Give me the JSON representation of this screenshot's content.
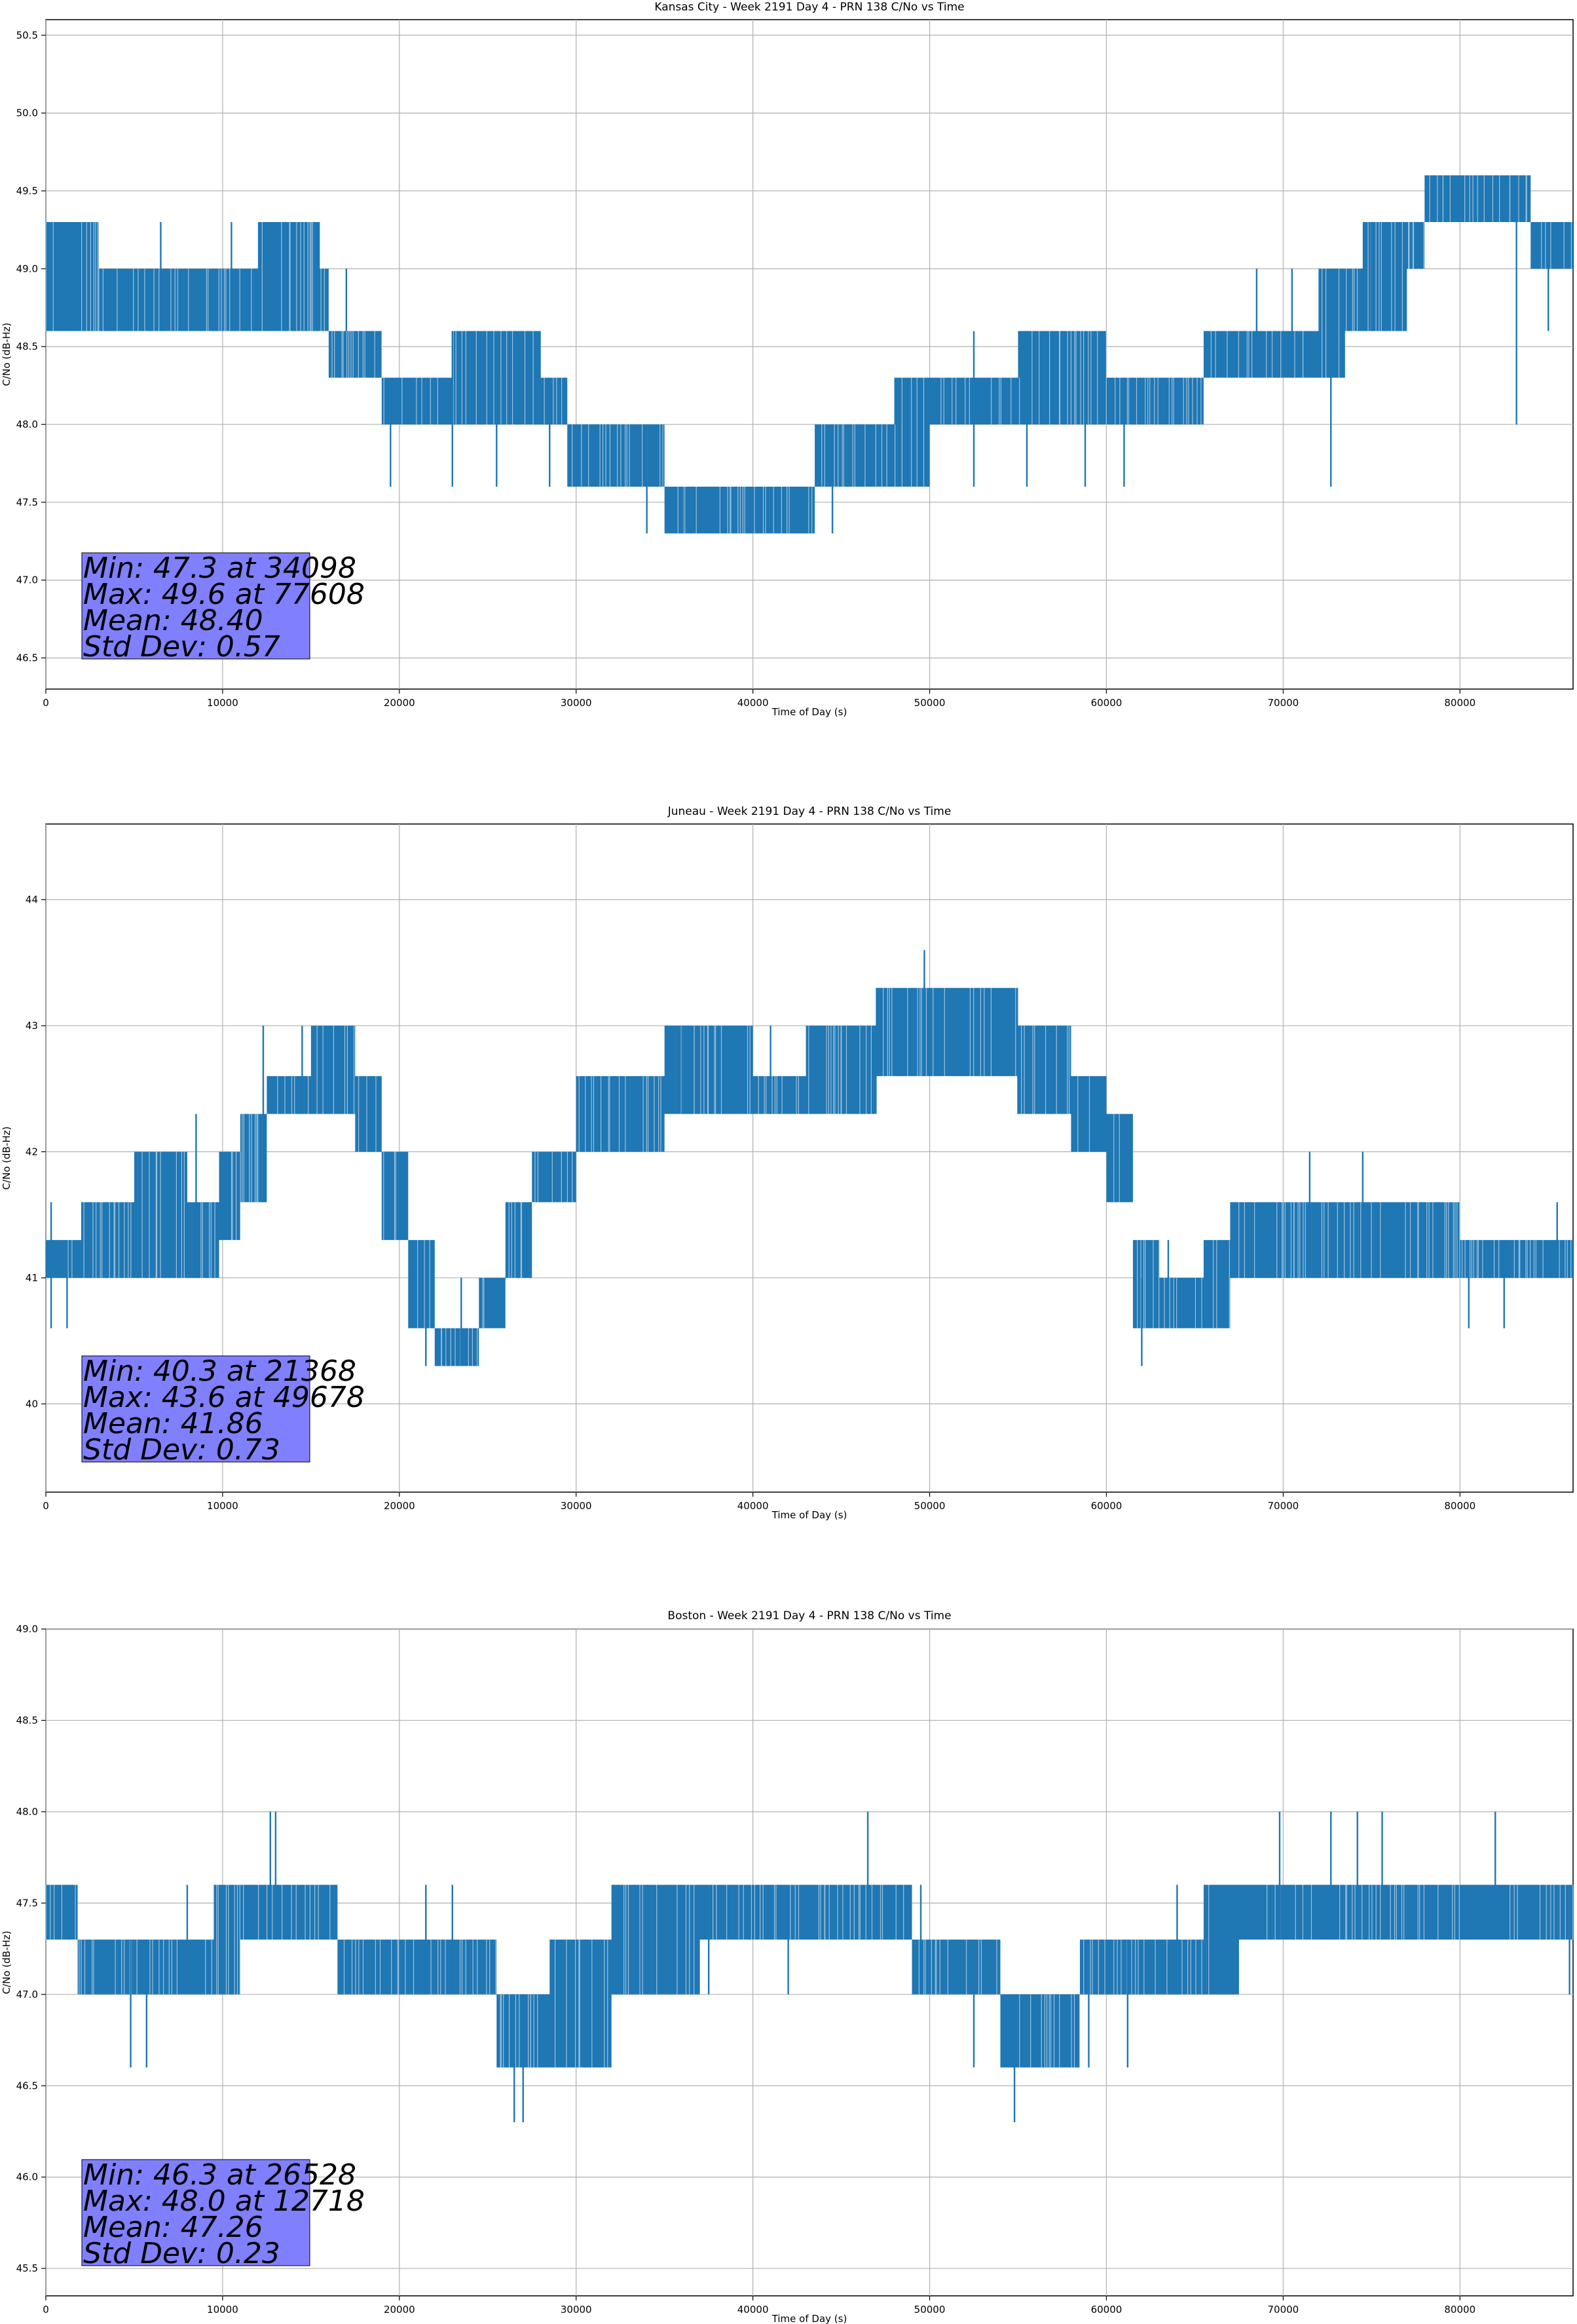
{
  "colors": {
    "series": "#1f77b4",
    "grid": "#b0b0b0",
    "stats_box": "#8080ff",
    "axis": "#000000"
  },
  "chart_data": [
    {
      "type": "line",
      "title": "Kansas City - Week 2191 Day 4 - PRN 138 C/No vs Time",
      "xlabel": "Time of Day (s)",
      "ylabel": "C/No (dB-Hz)",
      "xlim": [
        0,
        86400
      ],
      "ylim": [
        46.3,
        50.6
      ],
      "xticks": [
        "0",
        "10000",
        "20000",
        "30000",
        "40000",
        "50000",
        "60000",
        "70000",
        "80000"
      ],
      "yticks": [
        "46.5",
        "47.0",
        "47.5",
        "48.0",
        "48.5",
        "49.0",
        "49.5",
        "50.0",
        "50.5"
      ],
      "grid": true,
      "stats": [
        "Min: 47.3 at 34098",
        "Max: 49.6 at 77608",
        "Mean: 48.40",
        "Std Dev: 0.57"
      ],
      "series": [
        {
          "x": [
            0,
            3000,
            8000,
            12000,
            15500,
            16000,
            18500,
            19000,
            23000,
            28000,
            29500,
            35000,
            41000,
            43500,
            48000,
            50000,
            55000,
            60000,
            65000,
            65500,
            68000,
            72000,
            73500,
            74500,
            77000,
            78000,
            83000,
            84000,
            86400
          ],
          "low": [
            48.6,
            48.6,
            48.6,
            48.6,
            48.6,
            48.3,
            48.3,
            48.0,
            48.0,
            48.0,
            47.6,
            47.3,
            47.3,
            47.6,
            47.6,
            48.0,
            48.0,
            48.0,
            48.0,
            48.3,
            48.3,
            48.3,
            48.6,
            48.6,
            49.0,
            49.3,
            49.3,
            49.0,
            49.0
          ],
          "high": [
            49.3,
            49.0,
            49.0,
            49.3,
            49.0,
            48.6,
            48.6,
            48.3,
            48.6,
            48.3,
            48.0,
            47.6,
            47.6,
            48.0,
            48.3,
            48.3,
            48.6,
            48.3,
            48.3,
            48.6,
            48.6,
            49.0,
            49.0,
            49.3,
            49.3,
            49.6,
            49.6,
            49.3,
            49.3
          ],
          "spikes": [
            [
              1000,
              48.6,
              49.3
            ],
            [
              6500,
              48.6,
              49.3
            ],
            [
              10500,
              48.6,
              49.3
            ],
            [
              17000,
              48.6,
              49.0
            ],
            [
              19500,
              47.6,
              48.3
            ],
            [
              23000,
              47.6,
              48.6
            ],
            [
              25500,
              47.6,
              48.3
            ],
            [
              28500,
              47.6,
              48.3
            ],
            [
              34000,
              47.3,
              48.0
            ],
            [
              36000,
              47.3,
              47.6
            ],
            [
              38500,
              47.3,
              47.6
            ],
            [
              40500,
              47.3,
              47.6
            ],
            [
              44500,
              47.3,
              48.0
            ],
            [
              47500,
              47.6,
              48.0
            ],
            [
              52500,
              47.6,
              48.6
            ],
            [
              55500,
              47.6,
              48.6
            ],
            [
              58800,
              47.6,
              48.3
            ],
            [
              61000,
              47.6,
              48.3
            ],
            [
              68500,
              48.3,
              49.0
            ],
            [
              70500,
              48.3,
              49.0
            ],
            [
              72700,
              47.6,
              48.6
            ],
            [
              75000,
              48.6,
              49.3
            ],
            [
              83200,
              48.0,
              49.3
            ],
            [
              85000,
              48.6,
              49.3
            ]
          ]
        }
      ]
    },
    {
      "type": "line",
      "title": "Juneau - Week 2191 Day 4 - PRN 138 C/No vs Time",
      "xlabel": "Time of Day (s)",
      "ylabel": "C/No (dB-Hz)",
      "xlim": [
        0,
        86400
      ],
      "ylim": [
        39.3,
        44.6
      ],
      "xticks": [
        "0",
        "10000",
        "20000",
        "30000",
        "40000",
        "50000",
        "60000",
        "70000",
        "80000"
      ],
      "yticks": [
        "40",
        "41",
        "42",
        "43",
        "44"
      ],
      "grid": true,
      "stats": [
        "Min: 40.3 at 21368",
        "Max: 43.6 at 49678",
        "Mean: 41.86",
        "Std Dev: 0.73"
      ],
      "series": [
        {
          "x": [
            0,
            2000,
            5000,
            8000,
            9800,
            11000,
            12500,
            15000,
            17500,
            19000,
            20500,
            22000,
            24500,
            26000,
            27500,
            30000,
            35000,
            40000,
            43000,
            47000,
            51000,
            55000,
            58000,
            60000,
            61500,
            63000,
            65500,
            67000,
            70000,
            75000,
            80000,
            84000,
            86400
          ],
          "low": [
            41.0,
            41.0,
            41.0,
            41.0,
            41.3,
            41.6,
            42.3,
            42.3,
            42.0,
            41.3,
            40.6,
            40.3,
            40.6,
            41.0,
            41.6,
            42.0,
            42.3,
            42.3,
            42.3,
            42.6,
            42.6,
            42.3,
            42.0,
            41.6,
            40.6,
            40.6,
            40.6,
            41.0,
            41.0,
            41.0,
            41.0,
            41.0,
            41.0
          ],
          "high": [
            41.3,
            41.6,
            42.0,
            41.6,
            42.0,
            42.3,
            42.6,
            43.0,
            42.6,
            42.0,
            41.3,
            40.6,
            41.0,
            41.6,
            42.0,
            42.6,
            43.0,
            42.6,
            43.0,
            43.3,
            43.3,
            43.0,
            42.6,
            42.3,
            41.3,
            41.0,
            41.3,
            41.6,
            41.6,
            41.6,
            41.3,
            41.3,
            41.3
          ],
          "spikes": [
            [
              300,
              40.6,
              41.6
            ],
            [
              1200,
              40.6,
              41.3
            ],
            [
              5200,
              41.0,
              42.0
            ],
            [
              8500,
              41.0,
              42.3
            ],
            [
              12300,
              41.6,
              43.0
            ],
            [
              14500,
              42.3,
              43.0
            ],
            [
              16500,
              42.3,
              43.0
            ],
            [
              21500,
              40.3,
              41.0
            ],
            [
              23500,
              40.3,
              41.0
            ],
            [
              36000,
              42.3,
              43.0
            ],
            [
              41000,
              42.3,
              43.0
            ],
            [
              47000,
              42.6,
              43.3
            ],
            [
              49700,
              42.6,
              43.6
            ],
            [
              55000,
              42.3,
              43.0
            ],
            [
              62000,
              40.3,
              41.0
            ],
            [
              63500,
              40.6,
              41.3
            ],
            [
              71500,
              41.0,
              42.0
            ],
            [
              74500,
              41.0,
              42.0
            ],
            [
              80500,
              40.6,
              41.3
            ],
            [
              82500,
              40.6,
              41.3
            ],
            [
              85500,
              41.0,
              41.6
            ]
          ]
        }
      ]
    },
    {
      "type": "line",
      "title": "Boston - Week 2191 Day 4 - PRN 138 C/No vs Time",
      "xlabel": "Time of Day (s)",
      "ylabel": "C/No (dB-Hz)",
      "xlim": [
        0,
        86400
      ],
      "ylim": [
        45.35,
        49.0
      ],
      "xticks": [
        "0",
        "10000",
        "20000",
        "30000",
        "40000",
        "50000",
        "60000",
        "70000",
        "80000"
      ],
      "yticks": [
        "45.5",
        "46.0",
        "46.5",
        "47.0",
        "47.5",
        "48.0",
        "48.5",
        "49.0"
      ],
      "grid": true,
      "stats": [
        "Min: 46.3 at 26528",
        "Max: 48.0 at 12718",
        "Mean: 47.26",
        "Std Dev: 0.23"
      ],
      "series": [
        {
          "x": [
            0,
            1800,
            5000,
            9500,
            11000,
            16500,
            20000,
            24000,
            25500,
            28500,
            32000,
            37000,
            45000,
            49000,
            52000,
            54000,
            57000,
            58500,
            61000,
            65500,
            67500,
            70000,
            76000,
            81000,
            86400
          ],
          "low": [
            47.3,
            47.0,
            47.0,
            47.0,
            47.3,
            47.0,
            47.0,
            47.0,
            46.6,
            46.6,
            47.0,
            47.3,
            47.3,
            47.0,
            47.0,
            46.6,
            46.6,
            47.0,
            47.0,
            47.0,
            47.3,
            47.3,
            47.3,
            47.3,
            47.3
          ],
          "high": [
            47.6,
            47.3,
            47.3,
            47.6,
            47.6,
            47.3,
            47.3,
            47.3,
            47.0,
            47.3,
            47.6,
            47.6,
            47.6,
            47.3,
            47.3,
            47.0,
            47.0,
            47.3,
            47.3,
            47.6,
            47.6,
            47.6,
            47.6,
            47.6,
            47.6
          ],
          "spikes": [
            [
              4800,
              46.6,
              47.3
            ],
            [
              5700,
              46.6,
              47.3
            ],
            [
              8000,
              47.0,
              47.6
            ],
            [
              10500,
              47.0,
              47.6
            ],
            [
              12700,
              47.3,
              48.0
            ],
            [
              13000,
              47.3,
              48.0
            ],
            [
              21500,
              47.0,
              47.6
            ],
            [
              23000,
              47.0,
              47.6
            ],
            [
              26500,
              46.3,
              47.0
            ],
            [
              27000,
              46.3,
              47.0
            ],
            [
              30500,
              46.6,
              47.3
            ],
            [
              37500,
              47.0,
              47.6
            ],
            [
              42000,
              47.0,
              47.6
            ],
            [
              46500,
              47.3,
              48.0
            ],
            [
              49500,
              47.0,
              47.6
            ],
            [
              52500,
              46.6,
              47.3
            ],
            [
              54800,
              46.3,
              47.0
            ],
            [
              59000,
              46.6,
              47.3
            ],
            [
              61200,
              46.6,
              47.3
            ],
            [
              64000,
              47.0,
              47.6
            ],
            [
              69800,
              47.3,
              48.0
            ],
            [
              72700,
              47.3,
              48.0
            ],
            [
              74200,
              47.3,
              48.0
            ],
            [
              75600,
              47.3,
              48.0
            ],
            [
              82000,
              47.3,
              48.0
            ],
            [
              86200,
              47.0,
              47.6
            ]
          ]
        }
      ]
    }
  ]
}
